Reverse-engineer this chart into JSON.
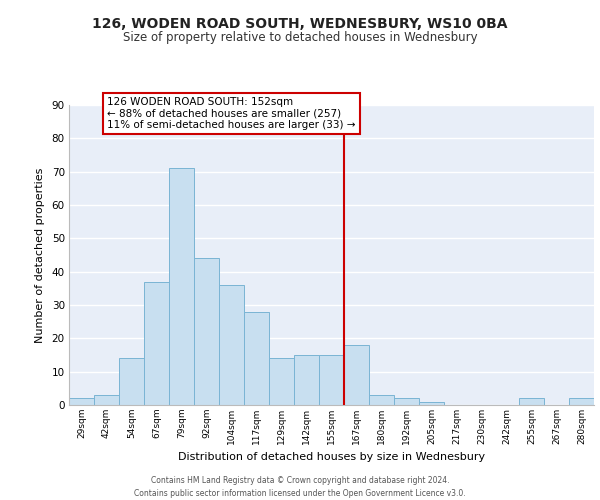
{
  "title": "126, WODEN ROAD SOUTH, WEDNESBURY, WS10 0BA",
  "subtitle": "Size of property relative to detached houses in Wednesbury",
  "xlabel": "Distribution of detached houses by size in Wednesbury",
  "ylabel": "Number of detached properties",
  "bar_labels": [
    "29sqm",
    "42sqm",
    "54sqm",
    "67sqm",
    "79sqm",
    "92sqm",
    "104sqm",
    "117sqm",
    "129sqm",
    "142sqm",
    "155sqm",
    "167sqm",
    "180sqm",
    "192sqm",
    "205sqm",
    "217sqm",
    "230sqm",
    "242sqm",
    "255sqm",
    "267sqm",
    "280sqm"
  ],
  "bar_values": [
    2,
    3,
    14,
    37,
    71,
    44,
    36,
    28,
    14,
    15,
    15,
    18,
    3,
    2,
    1,
    0,
    0,
    0,
    2,
    0,
    2
  ],
  "bar_color": "#c8dff0",
  "bar_edge_color": "#7ab4d4",
  "background_color": "#e8eef8",
  "grid_color": "#ffffff",
  "ylim": [
    0,
    90
  ],
  "yticks": [
    0,
    10,
    20,
    30,
    40,
    50,
    60,
    70,
    80,
    90
  ],
  "annotation_box_text": "126 WODEN ROAD SOUTH: 152sqm\n← 88% of detached houses are smaller (257)\n11% of semi-detached houses are larger (33) →",
  "vline_x": 10.5,
  "vline_color": "#cc0000",
  "annotation_box_color": "#ffffff",
  "annotation_box_border": "#cc0000",
  "footer_line1": "Contains HM Land Registry data © Crown copyright and database right 2024.",
  "footer_line2": "Contains public sector information licensed under the Open Government Licence v3.0."
}
